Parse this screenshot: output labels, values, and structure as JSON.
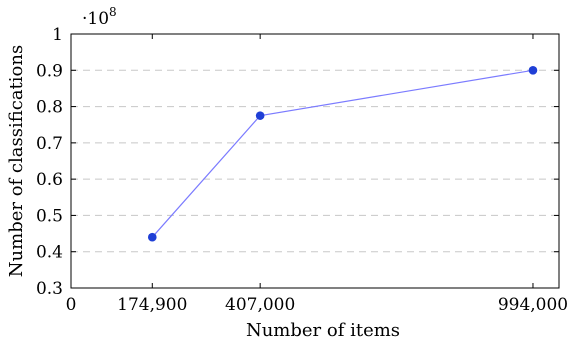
{
  "chart_data": {
    "type": "line",
    "title": "",
    "xlabel": "Number of items",
    "ylabel": "Number of classifications",
    "y_scale_base": "10",
    "y_scale_exponent": "8",
    "xlim": [
      0,
      1050000
    ],
    "ylim": [
      0.3,
      1.0
    ],
    "x_ticks": [
      {
        "value": 0,
        "label": "0"
      },
      {
        "value": 174900,
        "label": "174,900"
      },
      {
        "value": 407000,
        "label": "407,000"
      },
      {
        "value": 994000,
        "label": "994,000"
      }
    ],
    "y_ticks": [
      {
        "value": 0.3,
        "label": "0.3"
      },
      {
        "value": 0.4,
        "label": "0.4"
      },
      {
        "value": 0.5,
        "label": "0.5"
      },
      {
        "value": 0.6,
        "label": "0.6"
      },
      {
        "value": 0.7,
        "label": "0.7"
      },
      {
        "value": 0.8,
        "label": "0.8"
      },
      {
        "value": 0.9,
        "label": "0.9"
      },
      {
        "value": 1.0,
        "label": "1"
      }
    ],
    "grid": "horizontal dashed",
    "series": [
      {
        "x": [
          174900,
          407000,
          994000
        ],
        "y": [
          0.44,
          0.775,
          0.9
        ],
        "line_color": "#7b7bff",
        "marker_color": "#1f3fd6"
      }
    ]
  }
}
